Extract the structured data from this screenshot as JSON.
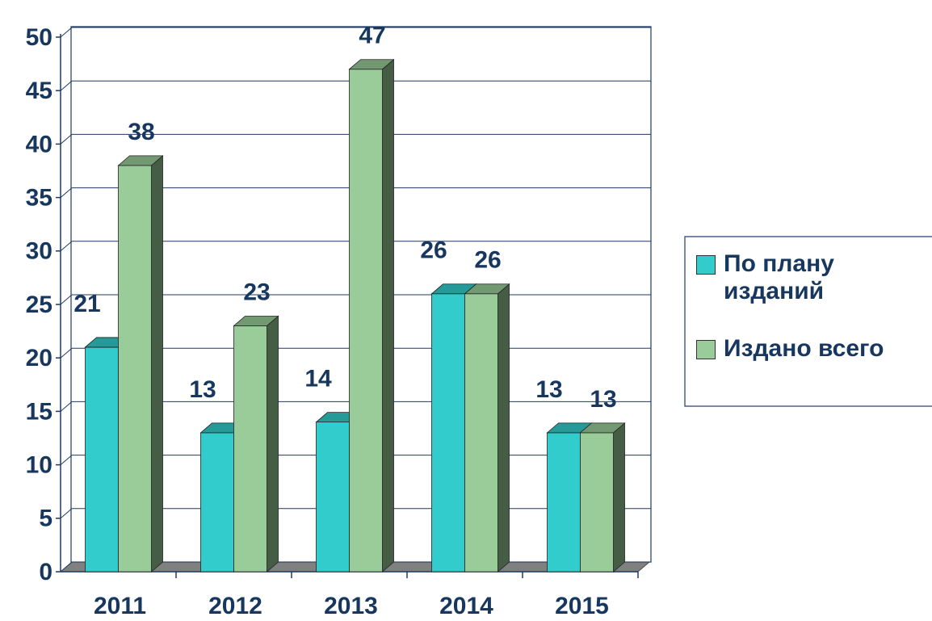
{
  "chart_data": {
    "type": "bar3d",
    "categories": [
      "2011",
      "2012",
      "2013",
      "2014",
      "2015"
    ],
    "series": [
      {
        "name": "По плану изданий",
        "color": "#33cccc",
        "values": [
          21,
          13,
          14,
          26,
          13
        ]
      },
      {
        "name": "Издано всего",
        "color": "#99cc99",
        "values": [
          38,
          23,
          47,
          26,
          13
        ]
      }
    ],
    "ylim": [
      0,
      50
    ],
    "yticks": [
      0,
      5,
      10,
      15,
      20,
      25,
      30,
      35,
      40,
      45,
      50
    ],
    "grid": true,
    "legend": "right"
  }
}
